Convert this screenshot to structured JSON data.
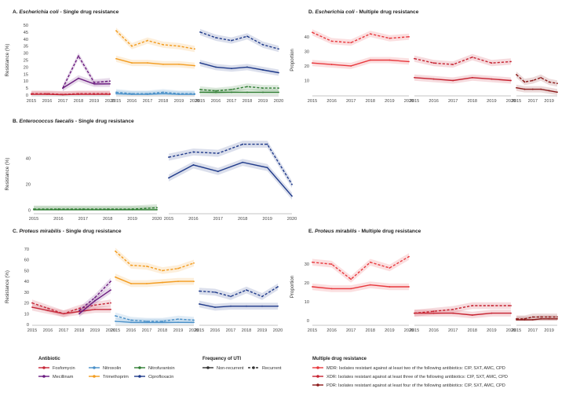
{
  "colors": {
    "Fosfomycin": "#c62839",
    "Mecillinam": "#6a1b7f",
    "Nitroxolin": "#4a90c8",
    "Trimethoprim": "#f39c1f",
    "Nitrofurantoin": "#2f7d32",
    "Ciprofloxacin": "#1f3a8a",
    "MDR": "#e8383d",
    "XDR": "#c62230",
    "PDR": "#8b1a1a"
  },
  "chart_data": [
    {
      "type": "line",
      "panel": "A",
      "title": "A. ",
      "title_italic": "Escherichia coli",
      "title_rest": " - Single drug resistance",
      "ylabel": "Resistance (%)",
      "ylim": [
        0,
        50
      ],
      "yticks": [
        "0",
        "5",
        "10",
        "15",
        "20",
        "25",
        "30",
        "35",
        "40",
        "45",
        "50"
      ],
      "facets": [
        {
          "key": "a1",
          "x": [
            "2015",
            "2016",
            "2017",
            "2018",
            "2019",
            "2020"
          ],
          "series": [
            {
              "name": "Fosfomycin",
              "recurrent": [
                1,
                1,
                0.5,
                1,
                1,
                1
              ],
              "nonrecurrent": [
                0.5,
                0.5,
                0.3,
                0.5,
                0.5,
                0.5
              ]
            },
            {
              "name": "Mecillinam",
              "recurrent": [
                null,
                null,
                5,
                28,
                9,
                10
              ],
              "nonrecurrent": [
                null,
                null,
                5,
                12,
                8,
                8
              ]
            }
          ]
        },
        {
          "key": "a2",
          "x": [
            "2015",
            "2016",
            "2017",
            "2018",
            "2019",
            "2020"
          ],
          "series": [
            {
              "name": "Nitroxolin",
              "recurrent": [
                2,
                1,
                1,
                2,
                1,
                1
              ],
              "nonrecurrent": [
                1,
                0.5,
                0.5,
                1,
                0.5,
                0.5
              ]
            },
            {
              "name": "Trimethoprim",
              "recurrent": [
                46,
                35,
                39,
                36,
                35,
                33
              ],
              "nonrecurrent": [
                26,
                23,
                23,
                22,
                22,
                21
              ]
            }
          ]
        },
        {
          "key": "a3",
          "x": [
            "2015",
            "2016",
            "2017",
            "2018",
            "2019",
            "2020"
          ],
          "series": [
            {
              "name": "Nitrofurantoin",
              "recurrent": [
                4,
                3,
                4,
                6,
                5,
                5
              ],
              "nonrecurrent": [
                2,
                2,
                2,
                2,
                2,
                2
              ]
            },
            {
              "name": "Ciprofloxacin",
              "recurrent": [
                45,
                41,
                39,
                42,
                36,
                33
              ],
              "nonrecurrent": [
                23,
                20,
                19,
                20,
                18,
                16
              ]
            }
          ]
        }
      ]
    },
    {
      "type": "line",
      "panel": "B",
      "title": "B. ",
      "title_italic": "Enterococcus faecalis",
      "title_rest": " - Single drug resistance",
      "ylabel": "Resistance (%)",
      "ylim": [
        -2,
        58
      ],
      "yticks": [
        "0",
        "20",
        "40"
      ],
      "facets": [
        {
          "key": "b1",
          "x": [
            "2015",
            "2016",
            "2017",
            "2018",
            "2019",
            "2020"
          ],
          "series": [
            {
              "name": "Nitrofurantoin",
              "recurrent": [
                1,
                1,
                1,
                1,
                1,
                2
              ],
              "nonrecurrent": [
                0.5,
                0.5,
                0.5,
                0.5,
                0.5,
                0.5
              ]
            }
          ]
        },
        {
          "key": "b2",
          "x": [
            "2015",
            "2016",
            "2017",
            "2018",
            "2019",
            "2020"
          ],
          "series": [
            {
              "name": "Ciprofloxacin",
              "recurrent": [
                41,
                45,
                44,
                51,
                51,
                20
              ],
              "nonrecurrent": [
                25,
                35,
                30,
                37,
                33,
                11
              ]
            }
          ]
        }
      ]
    },
    {
      "type": "line",
      "panel": "C",
      "title": "C. ",
      "title_italic": "Proteus mirabilis",
      "title_rest": " - Single drug resistance",
      "ylabel": "Resistance (%)",
      "ylim": [
        0,
        70
      ],
      "yticks": [
        "0",
        "10",
        "20",
        "30",
        "40",
        "50",
        "60",
        "70"
      ],
      "facets": [
        {
          "key": "c1",
          "x": [
            "2015",
            "2016",
            "2017",
            "2018",
            "2019",
            "2020"
          ],
          "series": [
            {
              "name": "Fosfomycin",
              "recurrent": [
                20,
                15,
                10,
                15,
                18,
                20
              ],
              "nonrecurrent": [
                16,
                13,
                10,
                12,
                14,
                14
              ]
            },
            {
              "name": "Mecillinam",
              "recurrent": [
                null,
                null,
                null,
                13,
                25,
                40
              ],
              "nonrecurrent": [
                null,
                null,
                null,
                10,
                22,
                32
              ]
            }
          ]
        },
        {
          "key": "c2",
          "x": [
            "2015",
            "2016",
            "2017",
            "2018",
            "2019",
            "2020"
          ],
          "series": [
            {
              "name": "Nitroxolin",
              "recurrent": [
                8,
                4,
                3,
                3,
                5,
                4
              ],
              "nonrecurrent": [
                3,
                2,
                2,
                2,
                2,
                2
              ]
            },
            {
              "name": "Trimethoprim",
              "recurrent": [
                68,
                55,
                54,
                50,
                52,
                57
              ],
              "nonrecurrent": [
                44,
                38,
                38,
                39,
                40,
                40
              ]
            }
          ]
        },
        {
          "key": "c3",
          "x": [
            "2015",
            "2016",
            "2017",
            "2018",
            "2019",
            "2020"
          ],
          "series": [
            {
              "name": "Ciprofloxacin",
              "recurrent": [
                31,
                30,
                26,
                32,
                26,
                35
              ],
              "nonrecurrent": [
                19,
                16,
                17,
                17,
                17,
                17
              ]
            }
          ]
        }
      ]
    },
    {
      "type": "line",
      "panel": "D",
      "title": "D. ",
      "title_italic": "Escherichia coli",
      "title_rest": " - Multiple drug resistance",
      "ylabel": "Proportion",
      "ylim": [
        0,
        48
      ],
      "yticks": [
        "10",
        "20",
        "30",
        "40"
      ],
      "facets": [
        {
          "key": "d1",
          "x": [
            "2015",
            "2016",
            "2017",
            "2018",
            "2019",
            "2020"
          ],
          "series": [
            {
              "name": "MDR",
              "recurrent": [
                43,
                37,
                36,
                42,
                39,
                40
              ],
              "nonrecurrent": [
                22,
                21,
                20,
                24,
                24,
                23
              ]
            }
          ]
        },
        {
          "key": "d2",
          "x": [
            "2015",
            "2016",
            "2017",
            "2018",
            "2019",
            "2020"
          ],
          "series": [
            {
              "name": "XDR",
              "recurrent": [
                25,
                22,
                21,
                26,
                22,
                23
              ],
              "nonrecurrent": [
                12,
                11,
                10,
                12,
                11,
                10
              ]
            }
          ]
        },
        {
          "key": "d3",
          "x": [
            "2015",
            "2016",
            "2017",
            "2018",
            "2019",
            "2020"
          ],
          "series": [
            {
              "name": "PDR",
              "recurrent": [
                14,
                9,
                10,
                12,
                9,
                8
              ],
              "nonrecurrent": [
                5,
                4,
                4,
                4,
                3,
                2
              ]
            }
          ]
        }
      ]
    },
    {
      "type": "line",
      "panel": "E",
      "title": "E. ",
      "title_italic": "Proteus mirabilis",
      "title_rest": " - Multiple drug resistance",
      "ylabel": "Proportion",
      "ylim": [
        -2,
        38
      ],
      "yticks": [
        "0",
        "10",
        "20",
        "30"
      ],
      "facets": [
        {
          "key": "e1",
          "x": [
            "2015",
            "2016",
            "2017",
            "2018",
            "2019",
            "2020"
          ],
          "series": [
            {
              "name": "MDR",
              "recurrent": [
                31,
                30,
                22,
                31,
                28,
                34
              ],
              "nonrecurrent": [
                18,
                17,
                17,
                19,
                18,
                18
              ]
            }
          ]
        },
        {
          "key": "e2",
          "x": [
            "2015",
            "2016",
            "2017",
            "2018",
            "2019",
            "2020"
          ],
          "series": [
            {
              "name": "XDR",
              "recurrent": [
                4,
                5,
                6,
                8,
                8,
                8
              ],
              "nonrecurrent": [
                4,
                4,
                4,
                3,
                4,
                4
              ]
            }
          ]
        },
        {
          "key": "e3",
          "x": [
            "2015",
            "2016",
            "2017",
            "2018",
            "2019",
            "2020"
          ],
          "series": [
            {
              "name": "PDR",
              "recurrent": [
                1,
                1,
                2,
                2,
                2,
                2
              ],
              "nonrecurrent": [
                0.5,
                0.5,
                0.5,
                1,
                1,
                1
              ]
            }
          ]
        }
      ]
    }
  ],
  "legend": {
    "antibiotic_title": "Antibiotic",
    "antibiotics": [
      "Fosfomycin",
      "Nitroxolin",
      "Nitrofurantoin",
      "Mecillinam",
      "Trimethoprim",
      "Ciprofloxacin"
    ],
    "frequency_title": "Frequency of UTI",
    "frequency": [
      "Non-recurrent",
      "Recurrent"
    ],
    "mdr_title": "Multiple drug resistance",
    "mdr": [
      {
        "name": "MDR",
        "text": "MDR: Isolates resistant against at least two of the following antibiotics: CIP, SXT, AMC, CPD"
      },
      {
        "name": "XDR",
        "text": "XDR: Isolates resistant against at least three of the following antibiotics: CIP, SXT, AMC, CPD"
      },
      {
        "name": "PDR",
        "text": "PDR: Isolates resistant against at least four of the following antibiotics: CIP, SXT, AMC, CPD"
      }
    ]
  }
}
